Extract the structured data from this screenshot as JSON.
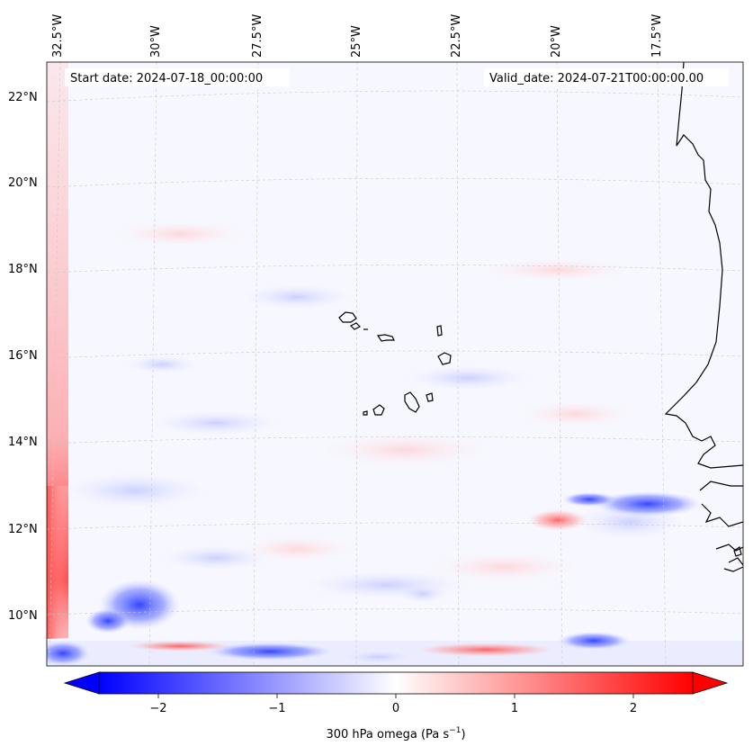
{
  "map": {
    "start_date": "Start date: 2024-07-18_00:00:00",
    "valid_date": "Valid_date: 2024-07-21T00:00:00.00",
    "lon_labels": [
      "32.5°W",
      "30°W",
      "27.5°W",
      "25°W",
      "22.5°W",
      "20°W",
      "17.5°W"
    ],
    "lat_labels": [
      "22°N",
      "20°N",
      "18°N",
      "16°N",
      "14°N",
      "12°N",
      "10°N"
    ],
    "colorbar": {
      "ticks": [
        "−2",
        "−1",
        "0",
        "1",
        "2"
      ],
      "tick_values": [
        -2,
        -1,
        0,
        1,
        2
      ],
      "range": [
        -2.5,
        2.5
      ],
      "label_main": "300 hPa omega (Pa s",
      "label_exp": "−1",
      "label_close": ")"
    },
    "colors": {
      "negative": "#0000ff",
      "zero": "#ffffff",
      "positive": "#ff0000",
      "coast": "#000000",
      "grid": "#cccccc"
    }
  }
}
